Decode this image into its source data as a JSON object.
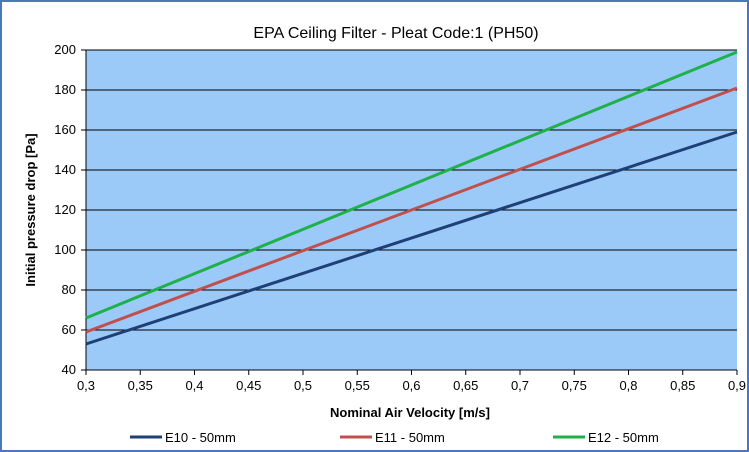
{
  "chart_data": {
    "type": "line",
    "title": "EPA Ceiling Filter - Pleat Code:1 (PH50)",
    "xlabel": "Nominal Air Velocity [m/s]",
    "ylabel": "Initial pressure drop [Pa]",
    "xlim": [
      0.3,
      0.9
    ],
    "ylim": [
      40,
      200
    ],
    "x_ticks": [
      "0,3",
      "0,35",
      "0,4",
      "0,45",
      "0,5",
      "0,55",
      "0,6",
      "0,65",
      "0,7",
      "0,75",
      "0,8",
      "0,85",
      "0,9"
    ],
    "y_ticks": [
      "40",
      "60",
      "80",
      "100",
      "120",
      "140",
      "160",
      "180",
      "200"
    ],
    "grid": "horizontal",
    "legend": "bottom",
    "series": [
      {
        "name": "E10 - 50mm",
        "color": "#1f3f77",
        "x": [
          0.3,
          0.9
        ],
        "y": [
          53,
          159
        ]
      },
      {
        "name": "E11 - 50mm",
        "color": "#c0504d",
        "x": [
          0.3,
          0.9
        ],
        "y": [
          59,
          181
        ]
      },
      {
        "name": "E12 - 50mm",
        "color": "#1fb04a",
        "x": [
          0.3,
          0.9
        ],
        "y": [
          66,
          199
        ]
      }
    ],
    "plot_background": "#9ccaf8",
    "frame_color": "#4a78b8"
  }
}
